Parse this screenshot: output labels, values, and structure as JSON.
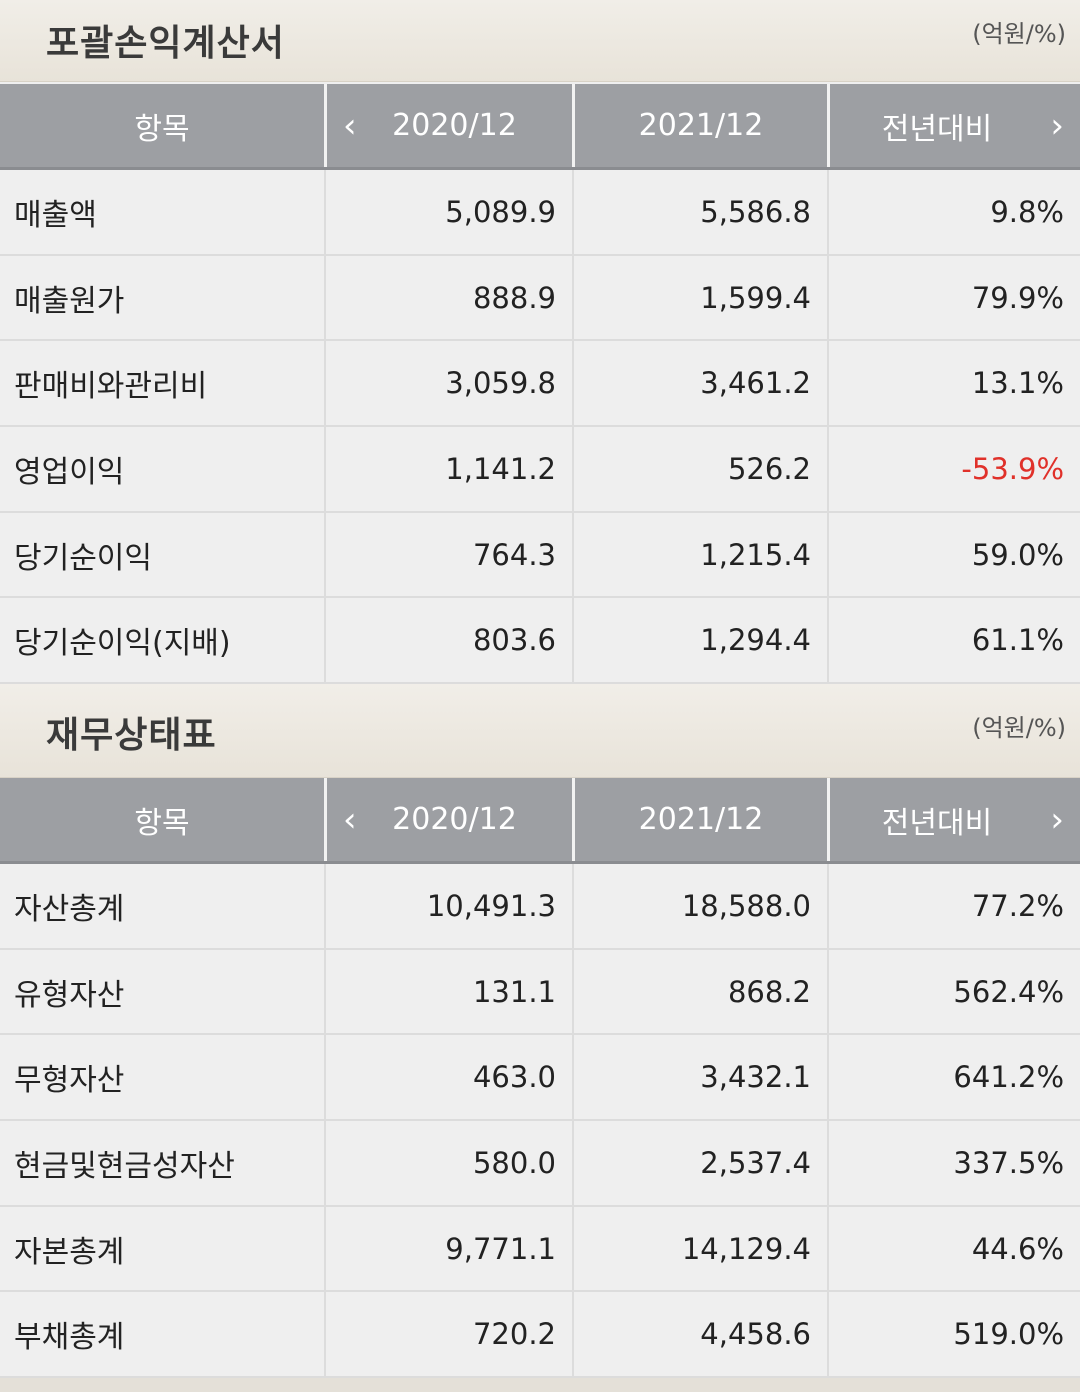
{
  "sections": [
    {
      "title": "포괄손익계산서",
      "unit": "(억원/%)",
      "header": {
        "item": "항목",
        "col1": "2020/12",
        "col2": "2021/12",
        "col3": "전년대비",
        "prev_icon": "chevron-left-icon",
        "next_icon": "chevron-right-icon"
      },
      "rows": [
        {
          "label": "매출액",
          "v2020": "5,089.9",
          "v2021": "5,586.8",
          "yoy": "9.8%"
        },
        {
          "label": "매출원가",
          "v2020": "888.9",
          "v2021": "1,599.4",
          "yoy": "79.9%"
        },
        {
          "label": "판매비와관리비",
          "v2020": "3,059.8",
          "v2021": "3,461.2",
          "yoy": "13.1%"
        },
        {
          "label": "영업이익",
          "v2020": "1,141.2",
          "v2021": "526.2",
          "yoy": "-53.9%"
        },
        {
          "label": "당기순이익",
          "v2020": "764.3",
          "v2021": "1,215.4",
          "yoy": "59.0%"
        },
        {
          "label": "당기순이익(지배)",
          "v2020": "803.6",
          "v2021": "1,294.4",
          "yoy": "61.1%"
        }
      ]
    },
    {
      "title": "재무상태표",
      "unit": "(억원/%)",
      "header": {
        "item": "항목",
        "col1": "2020/12",
        "col2": "2021/12",
        "col3": "전년대비",
        "prev_icon": "chevron-left-icon",
        "next_icon": "chevron-right-icon"
      },
      "rows": [
        {
          "label": "자산총계",
          "v2020": "10,491.3",
          "v2021": "18,588.0",
          "yoy": "77.2%"
        },
        {
          "label": "유형자산",
          "v2020": "131.1",
          "v2021": "868.2",
          "yoy": "562.4%"
        },
        {
          "label": "무형자산",
          "v2020": "463.0",
          "v2021": "3,432.1",
          "yoy": "641.2%"
        },
        {
          "label": "현금및현금성자산",
          "v2020": "580.0",
          "v2021": "2,537.4",
          "yoy": "337.5%"
        },
        {
          "label": "자본총계",
          "v2020": "9,771.1",
          "v2021": "14,129.4",
          "yoy": "44.6%"
        },
        {
          "label": "부채총계",
          "v2020": "720.2",
          "v2021": "4,458.6",
          "yoy": "519.0%"
        }
      ]
    }
  ],
  "colors": {
    "negative": "#e0312a",
    "header_bg": "#9d9fa3",
    "section_bg": "#ece8e0"
  }
}
